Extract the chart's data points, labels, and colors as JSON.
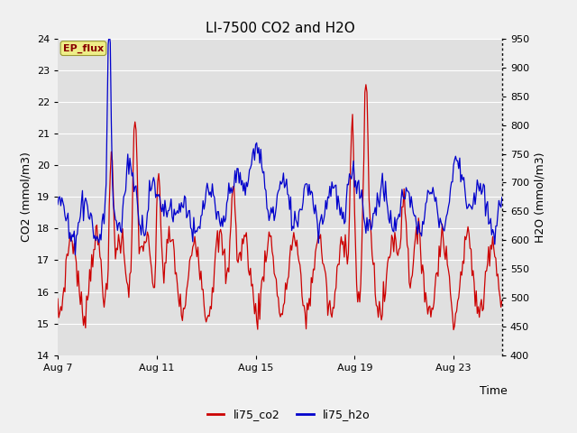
{
  "title": "LI-7500 CO2 and H2O",
  "xlabel": "Time",
  "ylabel_left": "CO2 (mmol/m3)",
  "ylabel_right": "H2O (mmol/m3)",
  "ylim_left": [
    14.0,
    24.0
  ],
  "ylim_right": [
    400,
    950
  ],
  "yticks_left": [
    14.0,
    15.0,
    16.0,
    17.0,
    18.0,
    19.0,
    20.0,
    21.0,
    22.0,
    23.0,
    24.0
  ],
  "yticks_right": [
    400,
    450,
    500,
    550,
    600,
    650,
    700,
    750,
    800,
    850,
    900,
    950
  ],
  "xtick_labels": [
    "Aug 7",
    "Aug 11",
    "Aug 15",
    "Aug 19",
    "Aug 23"
  ],
  "xtick_positions": [
    0,
    96,
    192,
    288,
    384
  ],
  "n_points": 432,
  "fig_bg_color": "#f0f0f0",
  "plot_bg_color": "#e0e0e0",
  "grid_color": "#ffffff",
  "line_color_co2": "#cc0000",
  "line_color_h2o": "#0000cc",
  "ep_flux_bg": "#eeee88",
  "ep_flux_edge": "#999933",
  "ep_flux_text_color": "#880000",
  "legend_label_co2": "li75_co2",
  "legend_label_h2o": "li75_h2o",
  "title_fontsize": 11,
  "axis_label_fontsize": 9,
  "tick_fontsize": 8,
  "ep_flux_fontsize": 8,
  "legend_fontsize": 9
}
